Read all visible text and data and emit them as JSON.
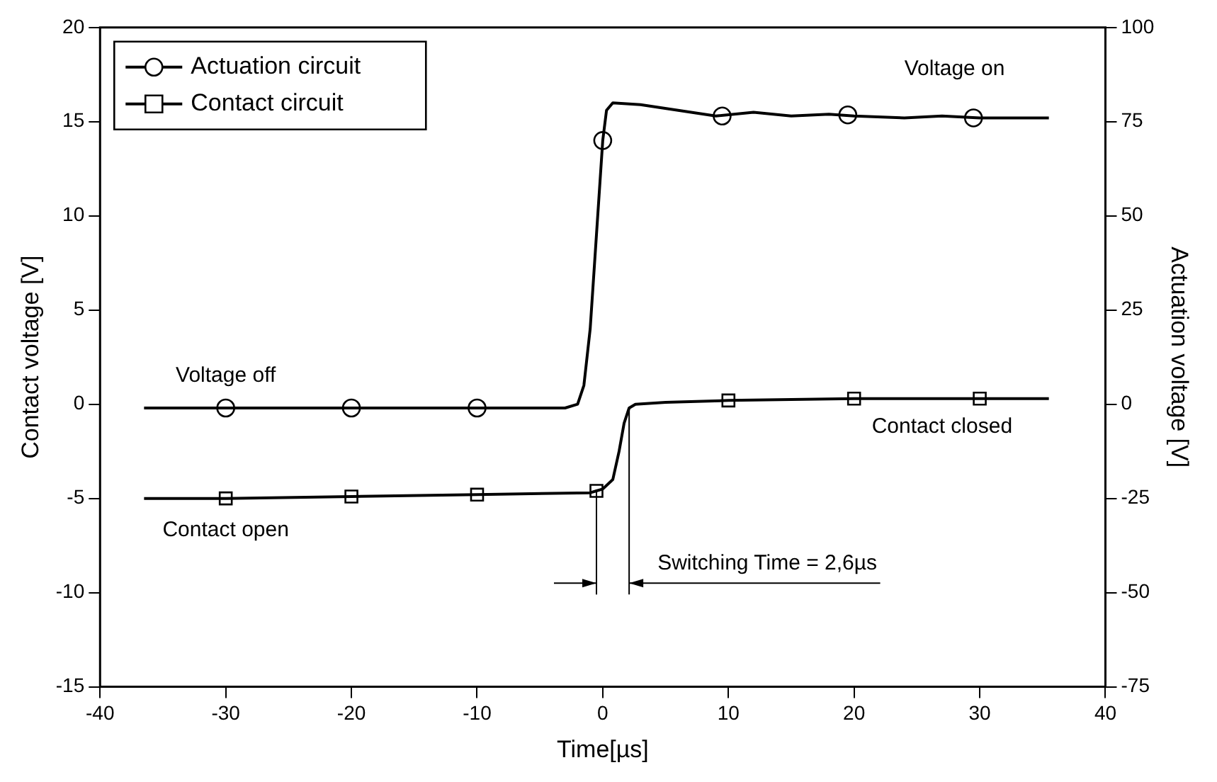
{
  "chart_data": {
    "type": "line",
    "xlabel": "Time[µs]",
    "ylabel": "Contact voltage [V]",
    "y2label": "Actuation voltage [V]",
    "xlim": [
      -40,
      40
    ],
    "xticks": [
      -40,
      -30,
      -20,
      -10,
      0,
      10,
      20,
      30,
      40
    ],
    "ylim": [
      -15,
      20
    ],
    "yticks": [
      -15,
      -10,
      -5,
      0,
      5,
      10,
      15,
      20
    ],
    "y2lim": [
      -75,
      100
    ],
    "y2ticks": [
      -75,
      -50,
      -25,
      0,
      25,
      50,
      75,
      100
    ],
    "grid": false,
    "legend": "top left",
    "series": [
      {
        "name": "Actuation circuit",
        "type": "line",
        "axis": "y2",
        "color": "#000000",
        "marker": "none",
        "x": [
          -36.5,
          -30,
          -20,
          -10,
          -3,
          -2,
          -1.5,
          -1,
          -0.5,
          0,
          0.3,
          0.8,
          3,
          6,
          9,
          12,
          15,
          18,
          20,
          24,
          27,
          30,
          33,
          35.5
        ],
        "values": [
          -1,
          -1,
          -1,
          -1,
          -1,
          0,
          5,
          20,
          45,
          70,
          78,
          80,
          79.5,
          78,
          76.5,
          77.5,
          76.5,
          77,
          76.5,
          76,
          76.5,
          76,
          76,
          76
        ]
      },
      {
        "type": "scatter",
        "axis": "y2",
        "color": "#000000",
        "marker": "circle",
        "x": [
          -30,
          -20,
          -10,
          0,
          9.5,
          19.5,
          29.5
        ],
        "values": [
          -1,
          -1,
          -1,
          70,
          76.5,
          76.8,
          76
        ]
      },
      {
        "name": "Contact circuit",
        "type": "line",
        "color": "#000000",
        "marker": "none",
        "x": [
          -36.5,
          -30,
          -20,
          -10,
          -1,
          -0.5,
          0,
          0.8,
          1.3,
          1.7,
          2.1,
          2.6,
          5,
          10,
          20,
          30,
          35.5
        ],
        "values": [
          -5,
          -5,
          -4.9,
          -4.8,
          -4.7,
          -4.6,
          -4.5,
          -4,
          -2.5,
          -1,
          -0.2,
          0,
          0.1,
          0.2,
          0.3,
          0.3,
          0.3
        ]
      },
      {
        "type": "scatter",
        "color": "#000000",
        "marker": "square",
        "x": [
          -30,
          -20,
          -10,
          -0.5,
          10,
          20,
          30
        ],
        "values": [
          -5,
          -4.9,
          -4.8,
          -4.6,
          0.2,
          0.3,
          0.3
        ]
      }
    ],
    "annotations": [
      "Voltage off",
      "Voltage on",
      "Contact open",
      "Contact closed",
      "Switching Time = 2,6µs"
    ],
    "ref_lines": [
      {
        "axis": "x",
        "value": -0.5
      },
      {
        "axis": "x",
        "value": 2.1
      }
    ]
  }
}
